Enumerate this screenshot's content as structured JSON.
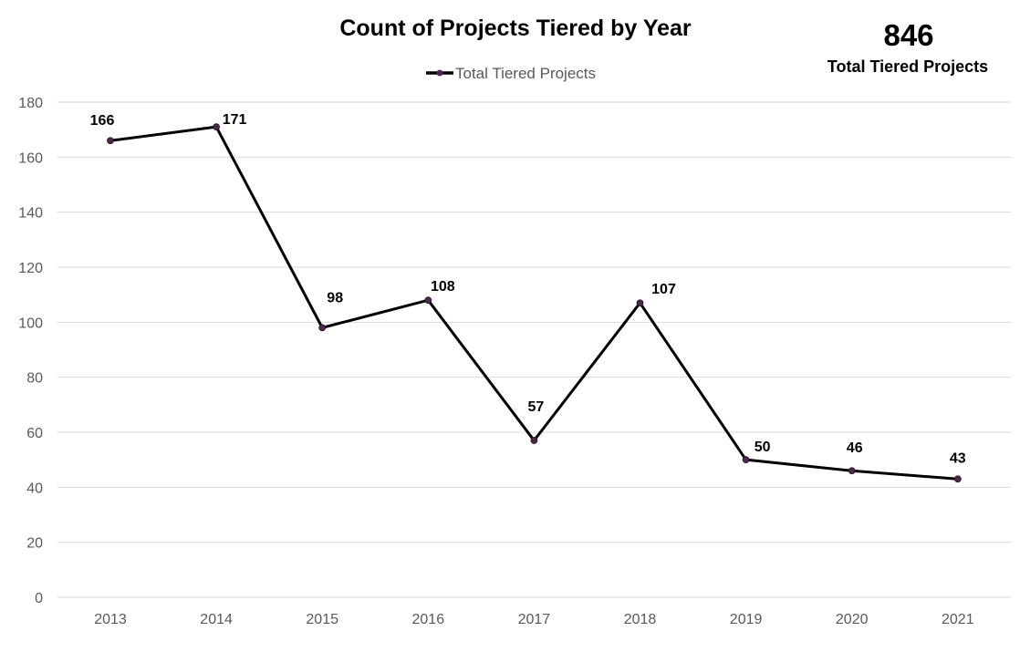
{
  "kpi": {
    "value": "846",
    "label": "Total Tiered Projects"
  },
  "chart_data": {
    "type": "line",
    "title": "Count of Projects Tiered by Year",
    "xlabel": "",
    "ylabel": "",
    "categories": [
      "2013",
      "2014",
      "2015",
      "2016",
      "2017",
      "2018",
      "2019",
      "2020",
      "2021"
    ],
    "series": [
      {
        "name": "Total Tiered Projects",
        "values": [
          166,
          171,
          98,
          108,
          57,
          107,
          50,
          46,
          43
        ],
        "color": "#000000",
        "marker_color": "#4b2a49"
      }
    ],
    "ylim": [
      0,
      180
    ],
    "yticks": [
      0,
      20,
      40,
      60,
      80,
      100,
      120,
      140,
      160,
      180
    ],
    "grid": true,
    "legend": "top-center",
    "data_labels": true
  }
}
